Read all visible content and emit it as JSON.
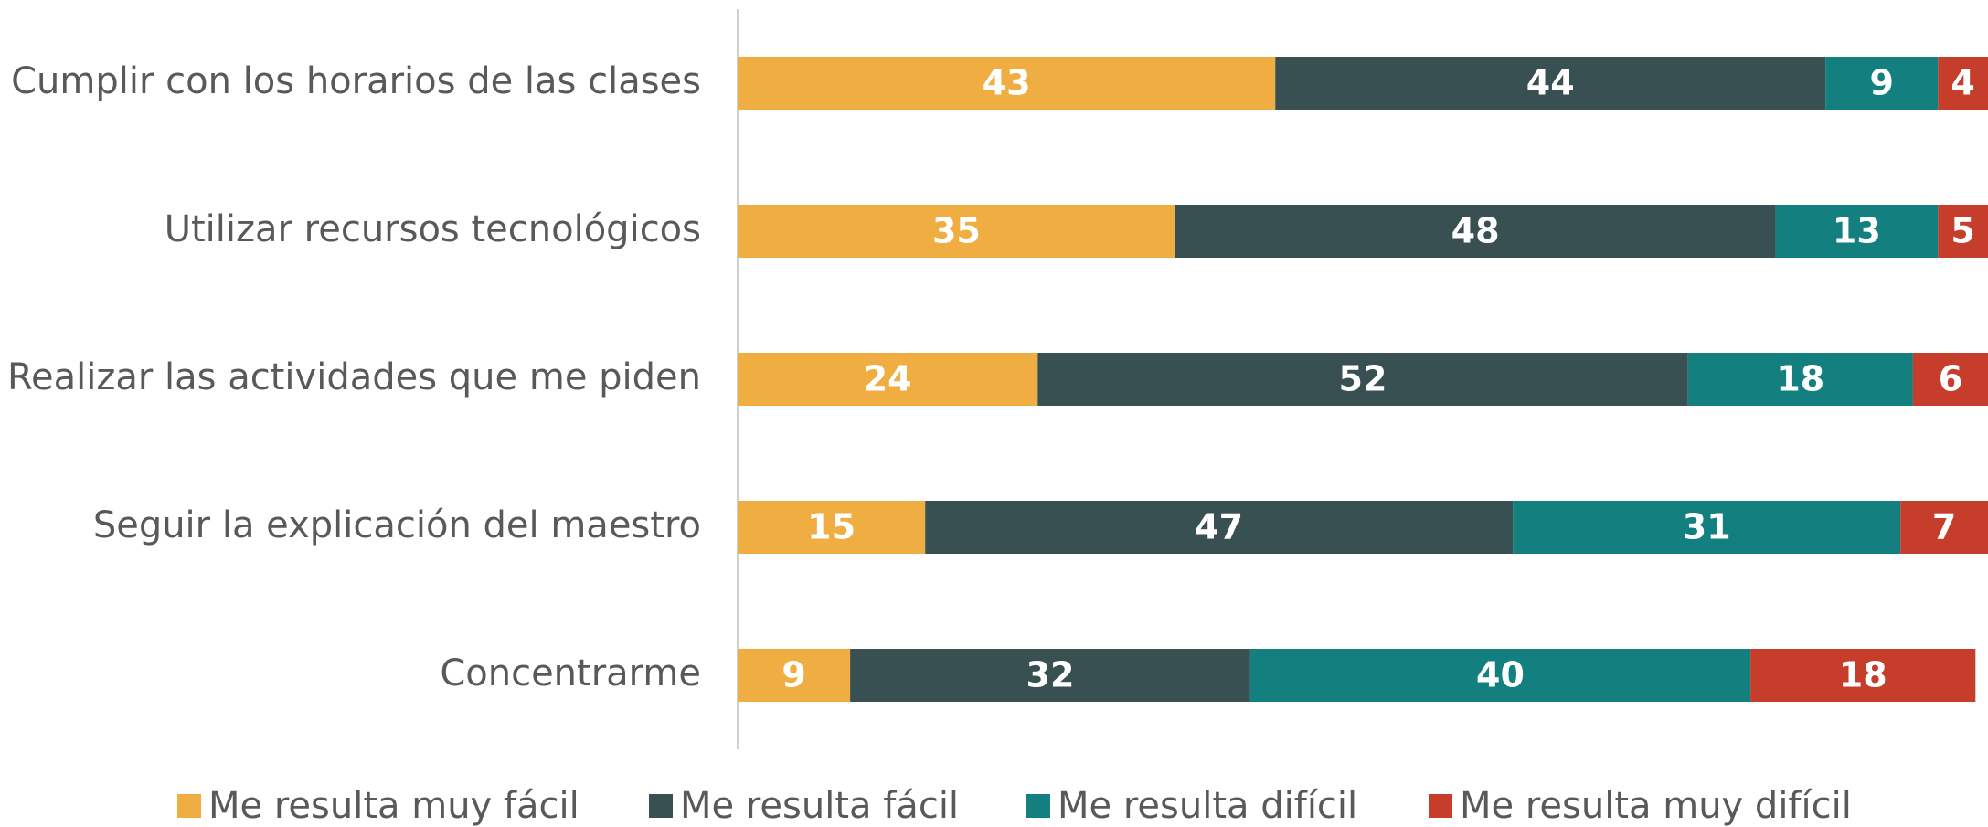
{
  "chart_data": {
    "type": "stacked-bar-horizontal",
    "categories": [
      "Cumplir con los horarios de las clases",
      "Utilizar recursos tecnológicos",
      "Realizar las actividades que me piden",
      "Seguir la explicación del maestro",
      "Concentrarme"
    ],
    "series": [
      {
        "name": "Me resulta muy fácil",
        "color": "#F0AD41",
        "values": [
          43,
          35,
          24,
          15,
          9
        ]
      },
      {
        "name": "Me resulta fácil",
        "color": "#385052",
        "values": [
          44,
          48,
          52,
          47,
          32
        ]
      },
      {
        "name": "Me resulta difícil",
        "color": "#13807F",
        "values": [
          9,
          13,
          18,
          31,
          40
        ]
      },
      {
        "name": "Me resulta muy difícil",
        "color": "#C63D2B",
        "values": [
          4,
          5,
          6,
          7,
          18
        ]
      }
    ],
    "xlim": [
      0,
      100
    ],
    "legend": "bottom"
  }
}
